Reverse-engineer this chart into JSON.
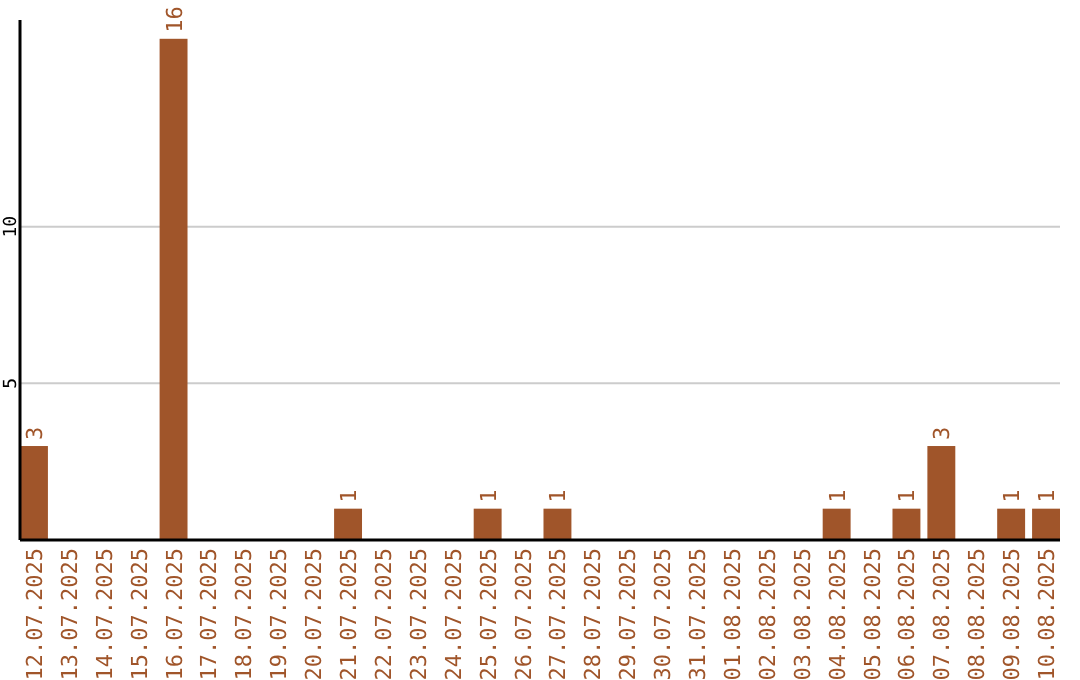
{
  "chart_data": {
    "type": "bar",
    "categories": [
      "12.07.2025",
      "13.07.2025",
      "14.07.2025",
      "15.07.2025",
      "16.07.2025",
      "17.07.2025",
      "18.07.2025",
      "19.07.2025",
      "20.07.2025",
      "21.07.2025",
      "22.07.2025",
      "23.07.2025",
      "24.07.2025",
      "25.07.2025",
      "26.07.2025",
      "27.07.2025",
      "28.07.2025",
      "29.07.2025",
      "30.07.2025",
      "31.07.2025",
      "01.08.2025",
      "02.08.2025",
      "03.08.2025",
      "04.08.2025",
      "05.08.2025",
      "06.08.2025",
      "07.08.2025",
      "08.08.2025",
      "09.08.2025",
      "10.08.2025"
    ],
    "values": [
      3,
      0,
      0,
      0,
      16,
      0,
      0,
      0,
      0,
      1,
      0,
      0,
      0,
      1,
      0,
      1,
      0,
      0,
      0,
      0,
      0,
      0,
      0,
      1,
      0,
      1,
      3,
      0,
      1,
      1
    ],
    "value_labels": [
      "3",
      null,
      null,
      null,
      "16",
      null,
      null,
      null,
      null,
      "1",
      null,
      null,
      null,
      "1",
      null,
      "1",
      null,
      null,
      null,
      null,
      null,
      null,
      null,
      "1",
      null,
      "1",
      "3",
      null,
      "1",
      "1"
    ],
    "color": "#a0552a",
    "ylim": [
      0,
      16.6
    ],
    "yticks": [
      5,
      10
    ],
    "grid": "y"
  }
}
